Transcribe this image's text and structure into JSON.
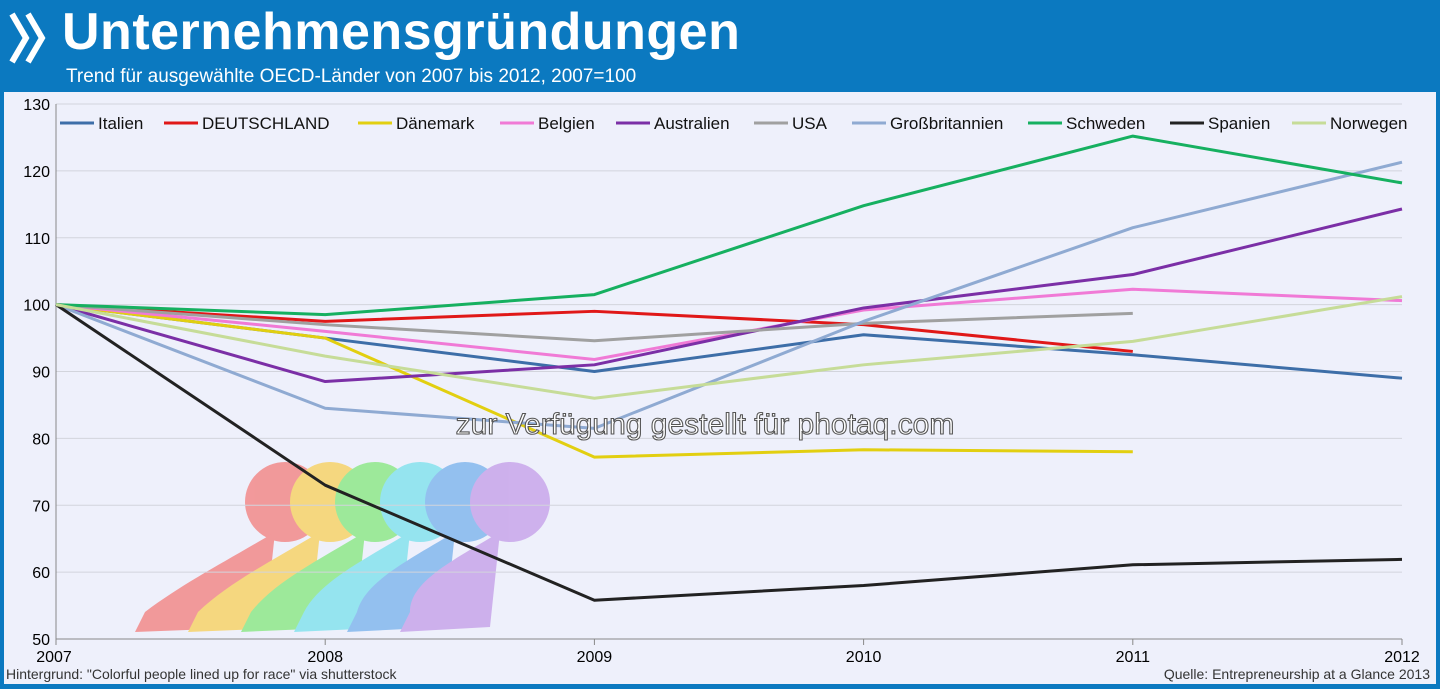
{
  "header": {
    "title": "Unternehmensgründungen",
    "subtitle": "Trend für ausgewählte OECD-Länder von 2007 bis 2012, 2007=100"
  },
  "colors": {
    "frame": "#0b79c0",
    "plot_bg": "#eef0fb"
  },
  "watermark": "zur Verfügung gestellt für photaq.com",
  "footer": {
    "left": "Hintergrund: \"Colorful people lined up for race\" via shutterstock",
    "right": "Quelle: Entrepreneurship at a Glance 2013"
  },
  "chart_data": {
    "type": "line",
    "title": "Unternehmensgründungen",
    "subtitle": "Trend für ausgewählte OECD-Länder von 2007 bis 2012, 2007=100",
    "x": [
      "2007",
      "2008",
      "2009",
      "2010",
      "2011",
      "2012"
    ],
    "ylim": [
      50,
      130
    ],
    "yticks": [
      50,
      60,
      70,
      80,
      90,
      100,
      110,
      120,
      130
    ],
    "grid": "horizontal",
    "legend_position": "top",
    "series": [
      {
        "name": "Italien",
        "color": "#3d6ea8",
        "values": [
          100,
          95,
          90,
          95.5,
          92.5,
          89
        ]
      },
      {
        "name": "DEUTSCHLAND",
        "color": "#e01818",
        "values": [
          100,
          97.5,
          99,
          97,
          93,
          null
        ]
      },
      {
        "name": "Dänemark",
        "color": "#e2cf10",
        "values": [
          100,
          95,
          77.2,
          78.3,
          78,
          null
        ]
      },
      {
        "name": "Belgien",
        "color": "#f07ad6",
        "values": [
          100,
          96,
          91.8,
          99.2,
          102.3,
          100.6
        ]
      },
      {
        "name": "Australien",
        "color": "#7b2fa6",
        "values": [
          100,
          88.5,
          91,
          99.5,
          104.5,
          114.3
        ]
      },
      {
        "name": "USA",
        "color": "#a0a0a0",
        "values": [
          100,
          97,
          94.6,
          97.2,
          98.7,
          null
        ]
      },
      {
        "name": "Großbritannien",
        "color": "#8faad2",
        "values": [
          100,
          84.5,
          81.5,
          97.5,
          111.5,
          121.3
        ]
      },
      {
        "name": "Schweden",
        "color": "#16b060",
        "values": [
          100,
          98.5,
          101.5,
          114.8,
          125.2,
          118.2
        ]
      },
      {
        "name": "Spanien",
        "color": "#222222",
        "values": [
          100,
          73,
          55.8,
          58,
          61.1,
          61.9
        ]
      },
      {
        "name": "Norwegen",
        "color": "#c6dc98",
        "values": [
          100,
          92.3,
          86,
          91,
          94.5,
          101.2
        ]
      }
    ]
  }
}
